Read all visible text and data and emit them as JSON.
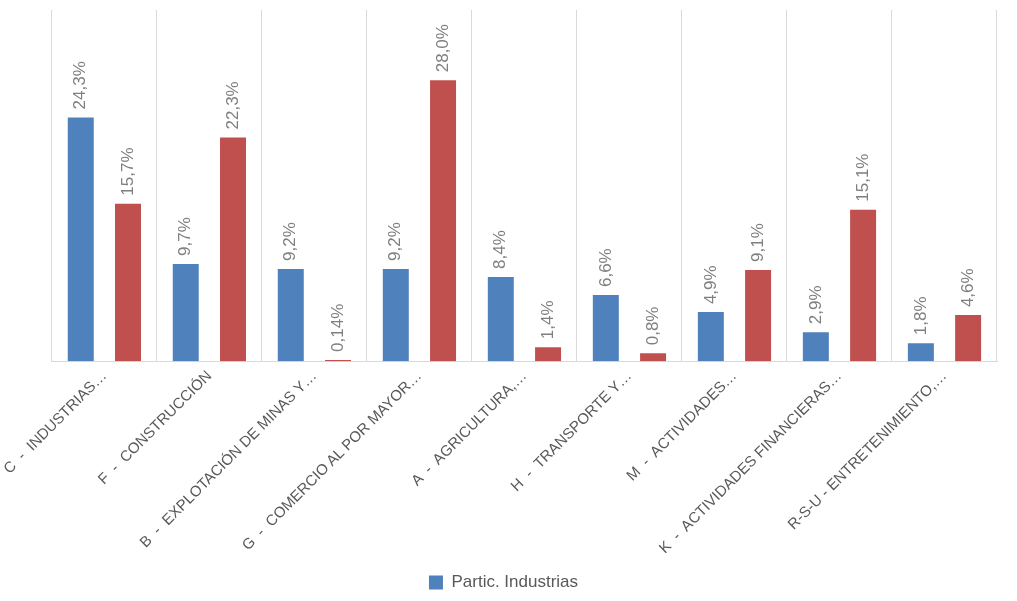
{
  "chart_data": {
    "type": "bar",
    "categories": [
      "C  -  INDUSTRIAS…",
      "F  -  CONSTRUCCIÓN",
      "B  -  EXPLOTACIÓN DE MINAS Y…",
      "G  -  COMERCIO AL POR MAYOR…",
      "A  -  AGRICULTURA,…",
      "H  -  TRANSPORTE Y…",
      "M  -  ACTIVIDADES…",
      "K  -  ACTIVIDADES FINANCIERAS…",
      "R-S-U - ENTRETENIMIENTO,…"
    ],
    "series": [
      {
        "name": "Partic. Industrias",
        "color": "#4f81bd",
        "values": [
          24.3,
          9.7,
          9.2,
          9.2,
          8.4,
          6.6,
          4.9,
          2.9,
          1.8
        ],
        "value_labels": [
          "24,3%",
          "9,7%",
          "9,2%",
          "9,2%",
          "8,4%",
          "6,6%",
          "4,9%",
          "2,9%",
          "1,8%"
        ]
      },
      {
        "color": "#c0504d",
        "values": [
          15.7,
          22.3,
          0.14,
          28.0,
          1.4,
          0.8,
          9.1,
          15.1,
          4.6
        ],
        "value_labels": [
          "15,7%",
          "22,3%",
          "0,14%",
          "28,0%",
          "1,4%",
          "0,8%",
          "9,1%",
          "15,1%",
          "4,6%"
        ]
      }
    ],
    "grid": "x",
    "legend": "bottom"
  }
}
